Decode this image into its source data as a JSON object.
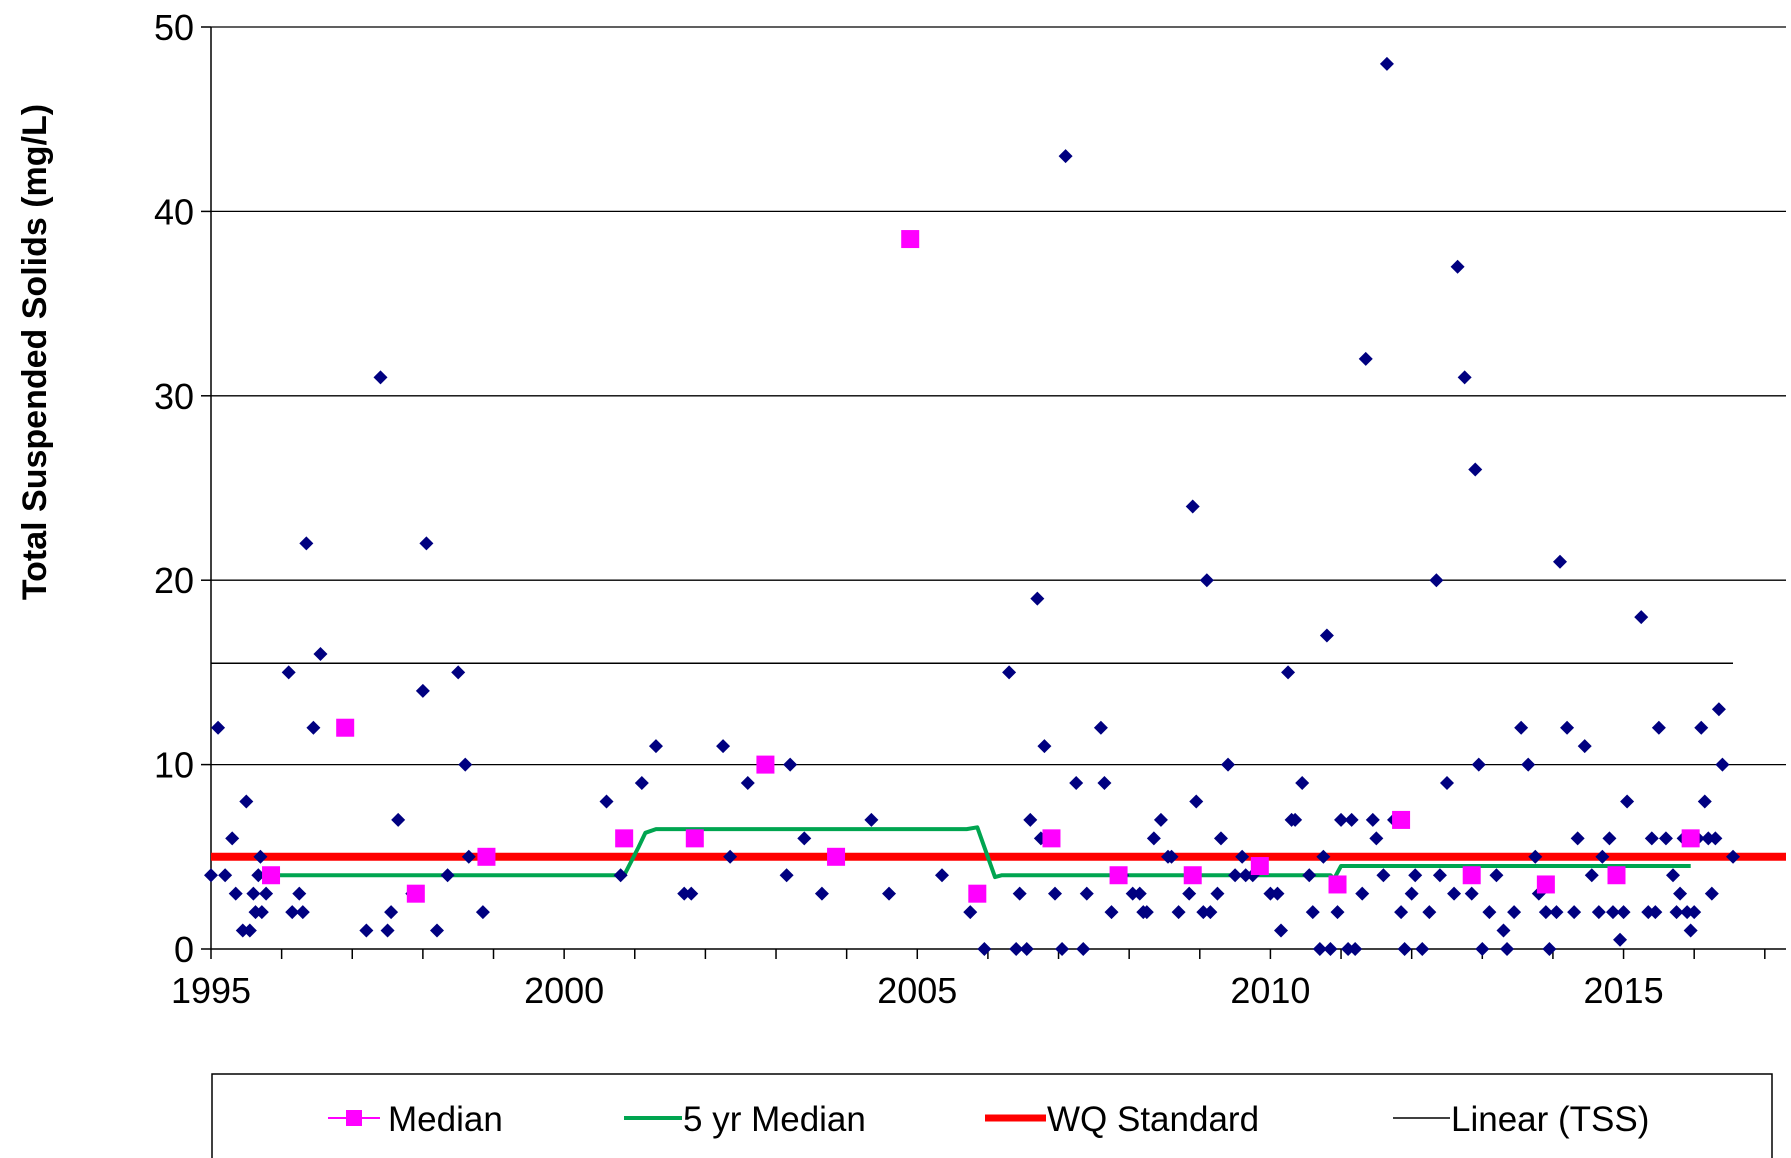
{
  "chart_data": {
    "type": "scatter",
    "title": "",
    "xlabel": "",
    "ylabel": "Total Suspended Solids (mg/L)",
    "xlim": [
      1995,
      2017.3
    ],
    "ylim": [
      0,
      50
    ],
    "x_ticks": [
      1995,
      2000,
      2005,
      2010,
      2015
    ],
    "x_tick_labels": [
      "1995",
      "2000",
      "2005",
      "2010",
      "2015"
    ],
    "y_ticks": [
      0,
      10,
      20,
      30,
      40,
      50
    ],
    "y_tick_labels": [
      "0",
      "10",
      "20",
      "30",
      "40",
      "50"
    ],
    "grid": "horizontal",
    "legend_position": "bottom",
    "colors": {
      "tss": "#000080",
      "median": "#ff00ff",
      "five_yr_median": "#00a550",
      "wq_standard": "#ff0000",
      "linear": "#000000"
    },
    "series": [
      {
        "key": "tss",
        "marker": "diamond",
        "points": [
          [
            1995.0,
            4
          ],
          [
            1995.1,
            12
          ],
          [
            1995.2,
            4
          ],
          [
            1995.3,
            6
          ],
          [
            1995.35,
            3
          ],
          [
            1995.45,
            1
          ],
          [
            1995.5,
            8
          ],
          [
            1995.55,
            1
          ],
          [
            1995.6,
            3
          ],
          [
            1995.63,
            2
          ],
          [
            1995.67,
            4
          ],
          [
            1995.7,
            5
          ],
          [
            1995.72,
            2
          ],
          [
            1995.78,
            3
          ],
          [
            1995.85,
            4
          ],
          [
            1996.1,
            15
          ],
          [
            1996.15,
            2
          ],
          [
            1996.25,
            3
          ],
          [
            1996.3,
            2
          ],
          [
            1996.35,
            22
          ],
          [
            1996.45,
            12
          ],
          [
            1996.55,
            16
          ],
          [
            1997.2,
            1
          ],
          [
            1997.4,
            31
          ],
          [
            1997.5,
            1
          ],
          [
            1997.55,
            2
          ],
          [
            1997.65,
            7
          ],
          [
            1997.85,
            3
          ],
          [
            1998.0,
            14
          ],
          [
            1998.05,
            22
          ],
          [
            1998.2,
            1
          ],
          [
            1998.35,
            4
          ],
          [
            1998.5,
            15
          ],
          [
            1998.6,
            10
          ],
          [
            1998.65,
            5
          ],
          [
            1998.85,
            2
          ],
          [
            2000.6,
            8
          ],
          [
            2000.8,
            4
          ],
          [
            2001.1,
            9
          ],
          [
            2001.3,
            11
          ],
          [
            2001.7,
            3
          ],
          [
            2001.8,
            3
          ],
          [
            2002.25,
            11
          ],
          [
            2002.35,
            5
          ],
          [
            2002.6,
            9
          ],
          [
            2003.15,
            4
          ],
          [
            2003.2,
            10
          ],
          [
            2003.4,
            6
          ],
          [
            2003.65,
            3
          ],
          [
            2004.35,
            7
          ],
          [
            2004.6,
            3
          ],
          [
            2005.35,
            4
          ],
          [
            2005.75,
            2
          ],
          [
            2005.95,
            0
          ],
          [
            2006.3,
            15
          ],
          [
            2006.4,
            0
          ],
          [
            2006.45,
            3
          ],
          [
            2006.55,
            0
          ],
          [
            2006.6,
            7
          ],
          [
            2006.7,
            19
          ],
          [
            2006.75,
            6
          ],
          [
            2006.8,
            11
          ],
          [
            2006.9,
            6
          ],
          [
            2006.95,
            3
          ],
          [
            2007.05,
            0
          ],
          [
            2007.1,
            43
          ],
          [
            2007.25,
            9
          ],
          [
            2007.35,
            0
          ],
          [
            2007.4,
            3
          ],
          [
            2007.6,
            12
          ],
          [
            2007.65,
            9
          ],
          [
            2007.75,
            2
          ],
          [
            2007.85,
            4
          ],
          [
            2007.9,
            4
          ],
          [
            2008.05,
            3
          ],
          [
            2008.15,
            3
          ],
          [
            2008.2,
            2
          ],
          [
            2008.25,
            2
          ],
          [
            2008.35,
            6
          ],
          [
            2008.45,
            7
          ],
          [
            2008.55,
            5
          ],
          [
            2008.6,
            5
          ],
          [
            2008.7,
            2
          ],
          [
            2008.85,
            3
          ],
          [
            2008.9,
            24
          ],
          [
            2008.95,
            8
          ],
          [
            2009.05,
            2
          ],
          [
            2009.1,
            20
          ],
          [
            2009.15,
            2
          ],
          [
            2009.25,
            3
          ],
          [
            2009.3,
            6
          ],
          [
            2009.4,
            10
          ],
          [
            2009.5,
            4
          ],
          [
            2009.6,
            5
          ],
          [
            2009.65,
            4
          ],
          [
            2009.75,
            4
          ],
          [
            2010.0,
            3
          ],
          [
            2010.1,
            3
          ],
          [
            2010.15,
            1
          ],
          [
            2010.25,
            15
          ],
          [
            2010.3,
            7
          ],
          [
            2010.35,
            7
          ],
          [
            2010.45,
            9
          ],
          [
            2010.55,
            4
          ],
          [
            2010.6,
            2
          ],
          [
            2010.7,
            0
          ],
          [
            2010.75,
            5
          ],
          [
            2010.8,
            17
          ],
          [
            2010.85,
            0
          ],
          [
            2010.95,
            2
          ],
          [
            2011.0,
            7
          ],
          [
            2011.1,
            0
          ],
          [
            2011.15,
            7
          ],
          [
            2011.2,
            0
          ],
          [
            2011.3,
            3
          ],
          [
            2011.35,
            32
          ],
          [
            2011.45,
            7
          ],
          [
            2011.5,
            6
          ],
          [
            2011.6,
            4
          ],
          [
            2011.65,
            48
          ],
          [
            2011.75,
            7
          ],
          [
            2011.85,
            2
          ],
          [
            2011.9,
            0
          ],
          [
            2012.0,
            3
          ],
          [
            2012.05,
            4
          ],
          [
            2012.15,
            0
          ],
          [
            2012.25,
            2
          ],
          [
            2012.35,
            20
          ],
          [
            2012.4,
            4
          ],
          [
            2012.5,
            9
          ],
          [
            2012.6,
            3
          ],
          [
            2012.65,
            37
          ],
          [
            2012.75,
            31
          ],
          [
            2012.85,
            3
          ],
          [
            2012.9,
            26
          ],
          [
            2012.95,
            10
          ],
          [
            2013.0,
            0
          ],
          [
            2013.1,
            2
          ],
          [
            2013.2,
            4
          ],
          [
            2013.3,
            1
          ],
          [
            2013.35,
            0
          ],
          [
            2013.45,
            2
          ],
          [
            2013.55,
            12
          ],
          [
            2013.65,
            10
          ],
          [
            2013.75,
            5
          ],
          [
            2013.8,
            3
          ],
          [
            2013.9,
            2
          ],
          [
            2013.95,
            0
          ],
          [
            2014.05,
            2
          ],
          [
            2014.1,
            21
          ],
          [
            2014.2,
            12
          ],
          [
            2014.3,
            2
          ],
          [
            2014.35,
            6
          ],
          [
            2014.45,
            11
          ],
          [
            2014.55,
            4
          ],
          [
            2014.65,
            2
          ],
          [
            2014.7,
            5
          ],
          [
            2014.8,
            6
          ],
          [
            2014.85,
            2
          ],
          [
            2014.95,
            0.5
          ],
          [
            2015.0,
            2
          ],
          [
            2015.05,
            8
          ],
          [
            2015.25,
            18
          ],
          [
            2015.35,
            2
          ],
          [
            2015.4,
            6
          ],
          [
            2015.45,
            2
          ],
          [
            2015.5,
            12
          ],
          [
            2015.6,
            6
          ],
          [
            2015.7,
            4
          ],
          [
            2015.75,
            2
          ],
          [
            2015.8,
            3
          ],
          [
            2015.85,
            6
          ],
          [
            2015.9,
            2
          ],
          [
            2015.95,
            1
          ],
          [
            2016.0,
            2
          ],
          [
            2016.05,
            6
          ],
          [
            2016.1,
            12
          ],
          [
            2016.15,
            8
          ],
          [
            2016.2,
            6
          ],
          [
            2016.25,
            3
          ],
          [
            2016.3,
            6
          ],
          [
            2016.35,
            13
          ],
          [
            2016.4,
            10
          ],
          [
            2016.55,
            5
          ]
        ]
      },
      {
        "key": "median",
        "name": "Median",
        "marker": "square",
        "points": [
          [
            1995.85,
            4
          ],
          [
            1996.9,
            12
          ],
          [
            1997.9,
            3
          ],
          [
            1998.9,
            5
          ],
          [
            2000.85,
            6
          ],
          [
            2001.85,
            6
          ],
          [
            2002.85,
            10
          ],
          [
            2003.85,
            5
          ],
          [
            2004.9,
            38.5
          ],
          [
            2005.85,
            3
          ],
          [
            2006.9,
            6
          ],
          [
            2007.85,
            4
          ],
          [
            2008.9,
            4
          ],
          [
            2009.85,
            4.5
          ],
          [
            2010.95,
            3.5
          ],
          [
            2011.85,
            7
          ],
          [
            2012.85,
            4
          ],
          [
            2013.9,
            3.5
          ],
          [
            2014.9,
            4
          ],
          [
            2015.95,
            6
          ]
        ]
      },
      {
        "key": "five_yr_median",
        "name": "5 yr Median",
        "marker": "line",
        "points": [
          [
            1995.85,
            4
          ],
          [
            2000.85,
            4
          ],
          [
            2001.05,
            5.5
          ],
          [
            2001.15,
            6.3
          ],
          [
            2001.3,
            6.5
          ],
          [
            2005.7,
            6.5
          ],
          [
            2005.85,
            6.6
          ],
          [
            2006.1,
            3.9
          ],
          [
            2006.2,
            4
          ],
          [
            2010.85,
            4
          ],
          [
            2010.9,
            3.8
          ],
          [
            2011.0,
            4.5
          ],
          [
            2015.95,
            4.5
          ]
        ]
      },
      {
        "key": "wq_standard",
        "name": "WQ Standard",
        "marker": "thick-line",
        "points": [
          [
            1995.0,
            5
          ],
          [
            2017.3,
            5
          ]
        ]
      },
      {
        "key": "linear",
        "name": "Linear (TSS)",
        "marker": "thin-line",
        "points": [
          [
            1995.0,
            15.5
          ],
          [
            2016.55,
            15.5
          ]
        ]
      }
    ]
  },
  "legend": {
    "items": [
      {
        "key": "median",
        "label": "Median"
      },
      {
        "key": "five_yr_median",
        "label": "5 yr Median"
      },
      {
        "key": "wq_standard",
        "label": "WQ Standard"
      },
      {
        "key": "linear",
        "label": "Linear (TSS)"
      }
    ]
  }
}
